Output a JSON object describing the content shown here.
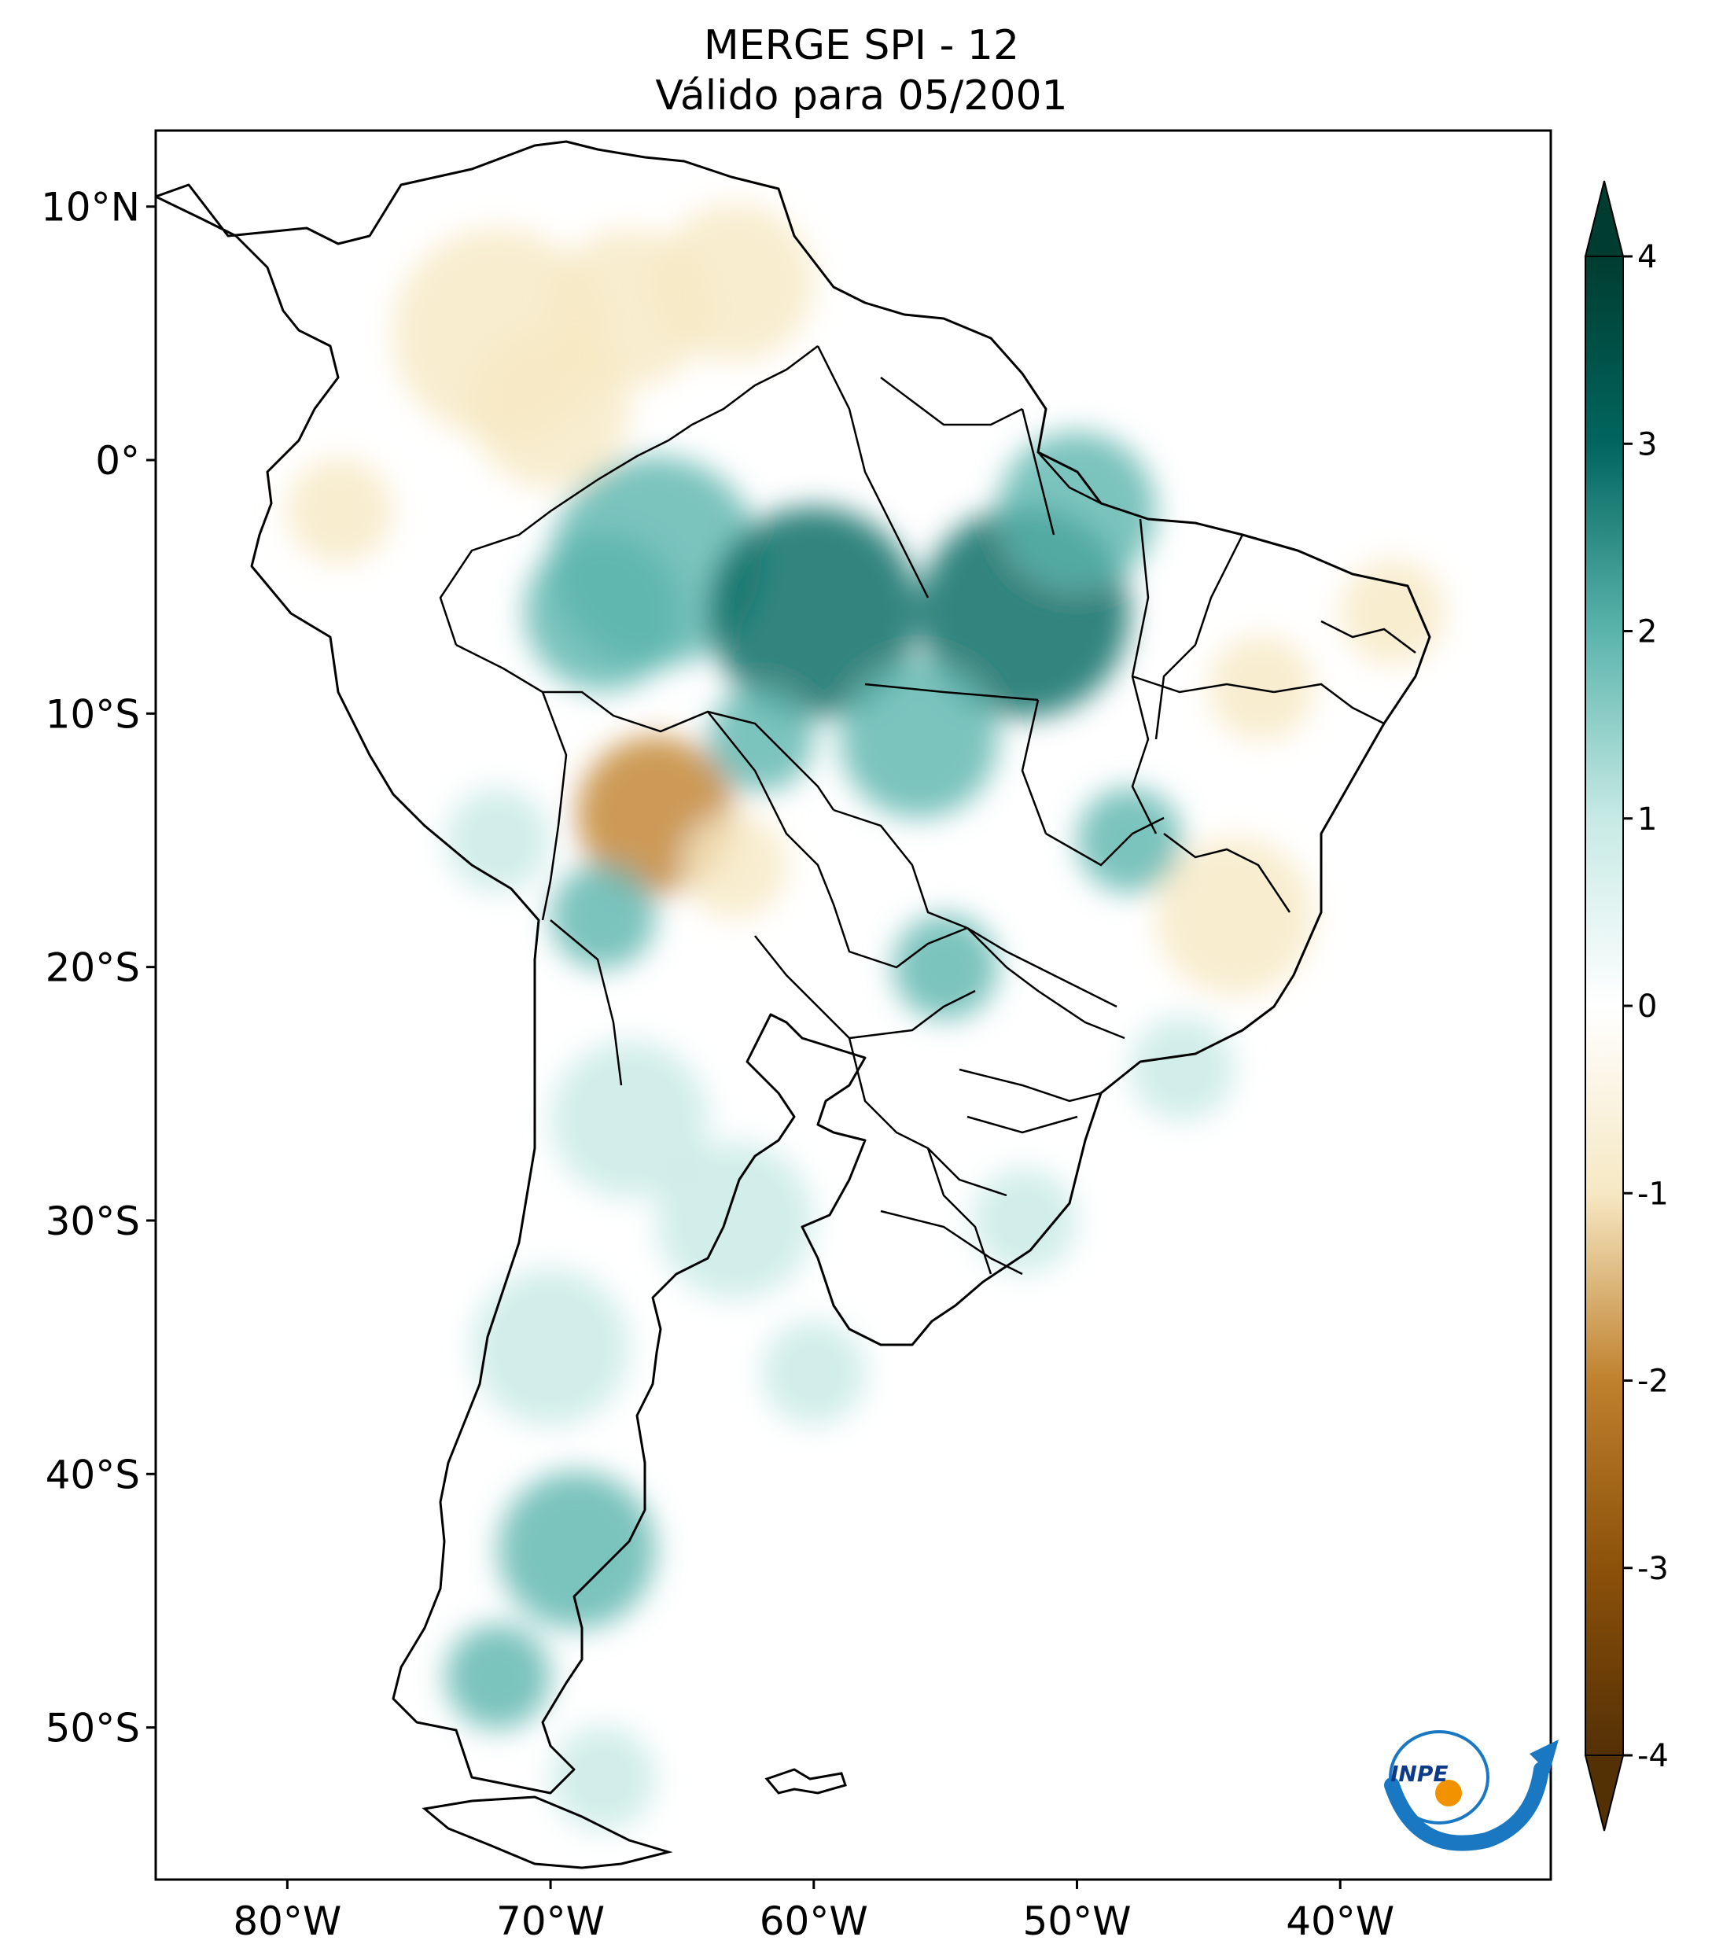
{
  "title": {
    "line1": "MERGE   SPI - 12",
    "line2": "Válido para 05/2001"
  },
  "map": {
    "lon_range": [
      -85,
      -32
    ],
    "lat_range": [
      -56,
      13
    ],
    "x_ticks": [
      {
        "lon": -80,
        "label": "80°W"
      },
      {
        "lon": -70,
        "label": "70°W"
      },
      {
        "lon": -60,
        "label": "60°W"
      },
      {
        "lon": -50,
        "label": "50°W"
      },
      {
        "lon": -40,
        "label": "40°W"
      }
    ],
    "y_ticks": [
      {
        "lat": 10,
        "label": "10°N"
      },
      {
        "lat": 0,
        "label": "0°"
      },
      {
        "lat": -10,
        "label": "10°S"
      },
      {
        "lat": -20,
        "label": "20°S"
      },
      {
        "lat": -30,
        "label": "30°S"
      },
      {
        "lat": -40,
        "label": "40°S"
      },
      {
        "lat": -50,
        "label": "50°S"
      }
    ]
  },
  "colorbar": {
    "min": -4,
    "max": 4,
    "ticks": [
      {
        "value": 4,
        "label": "4"
      },
      {
        "value": 3,
        "label": "3"
      },
      {
        "value": 2,
        "label": "2"
      },
      {
        "value": 1,
        "label": "1"
      },
      {
        "value": 0,
        "label": "0"
      },
      {
        "value": -1,
        "label": "-1"
      },
      {
        "value": -2,
        "label": "-2"
      },
      {
        "value": -3,
        "label": "-3"
      },
      {
        "value": -4,
        "label": "-4"
      }
    ],
    "stops": [
      {
        "value": -4,
        "color": "#543005"
      },
      {
        "value": -3,
        "color": "#8c510a"
      },
      {
        "value": -2,
        "color": "#bf812d"
      },
      {
        "value": -1,
        "color": "#f6e8c3"
      },
      {
        "value": 0,
        "color": "#ffffff"
      },
      {
        "value": 1,
        "color": "#c7eae5"
      },
      {
        "value": 2,
        "color": "#5ab4ac"
      },
      {
        "value": 3,
        "color": "#01665e"
      },
      {
        "value": 4,
        "color": "#003c30"
      }
    ]
  },
  "logo": {
    "text": "INPE",
    "arrow_color": "#1a78c2",
    "dot_color": "#f39200"
  }
}
